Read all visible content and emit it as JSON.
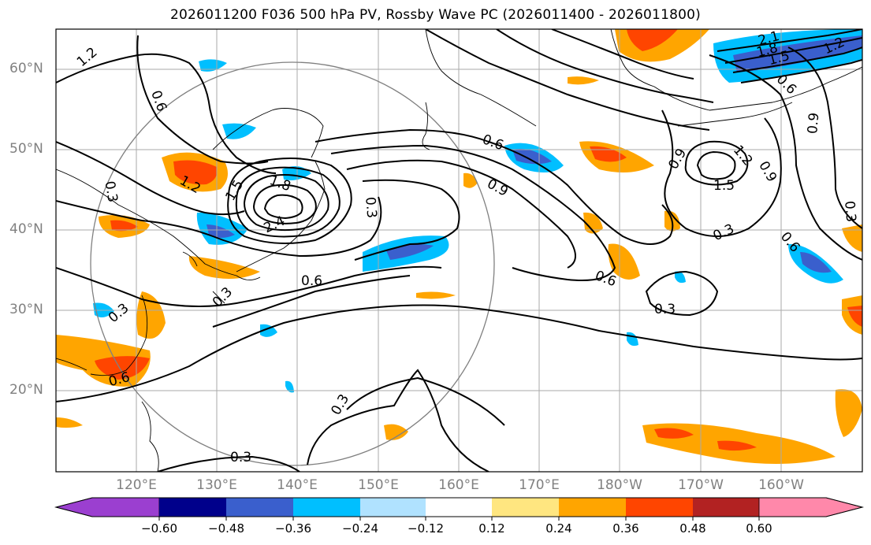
{
  "title": "2026011200 F036 500 hPa PV, Rossby Wave PC (2026011400 - 2026011800)",
  "lat_labels": [
    "60°N",
    "50°N",
    "40°N",
    "30°N",
    "20°N"
  ],
  "lon_labels": [
    "120°E",
    "130°E",
    "140°E",
    "150°E",
    "160°E",
    "170°E",
    "180°W",
    "170°W",
    "160°W"
  ],
  "colorbar": {
    "tick_labels": [
      "−0.60",
      "−0.48",
      "−0.36",
      "−0.24",
      "−0.12",
      "0.12",
      "0.24",
      "0.36",
      "0.48",
      "0.60"
    ],
    "colors": [
      "#9b3fd0",
      "#00008b",
      "#3a5fcd",
      "#00bfff",
      "#b0e2ff",
      "#ffffff",
      "#ffe680",
      "#ffa500",
      "#ff4500",
      "#b22222",
      "#ff88aa"
    ]
  },
  "contour_labels": [
    "1.2",
    "0.6",
    "0.3",
    "1.2",
    "1.5",
    "1.8",
    "2.4",
    "0.3",
    "0.3",
    "0.6",
    "0.3",
    "0.6",
    "0.6",
    "0.9",
    "0.6",
    "0.3",
    "0.9",
    "1.2",
    "1.5",
    "0.9",
    "0.3",
    "0.6",
    "0.3",
    "0.3",
    "0.3",
    "2.1",
    "1.8",
    "1.5",
    "1.2",
    "0.9",
    "0.6"
  ]
}
